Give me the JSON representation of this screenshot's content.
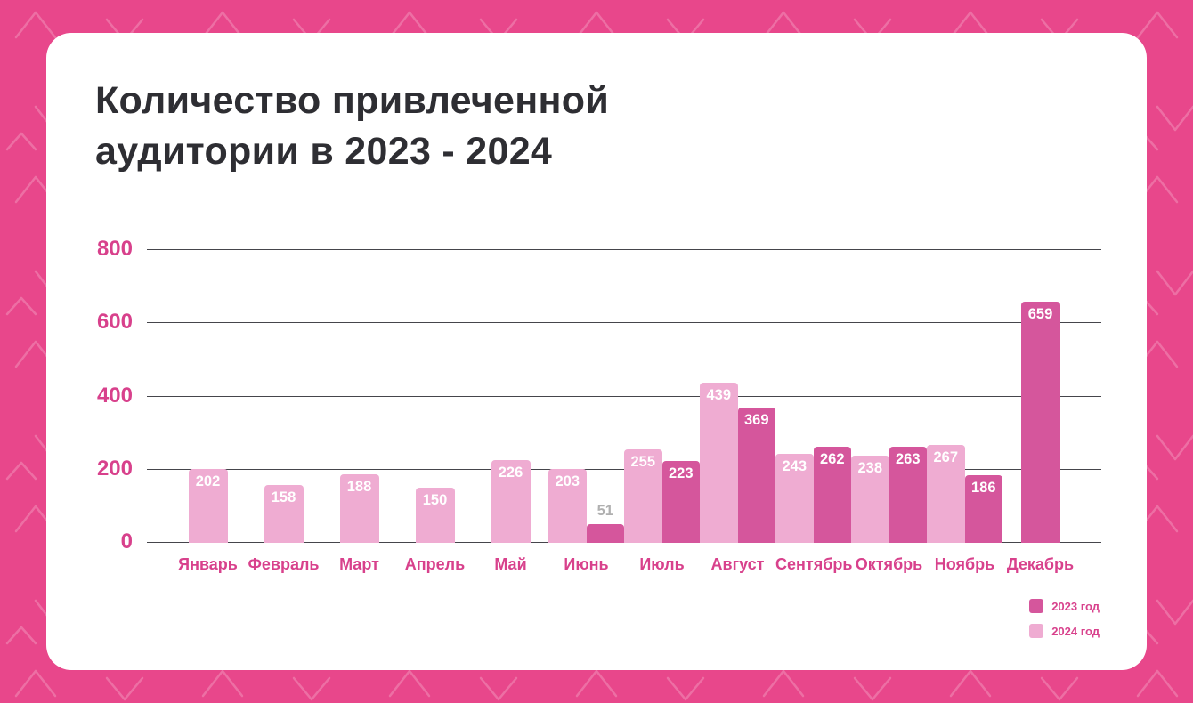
{
  "title": {
    "line1": "Количество привлеченной",
    "line2": "аудитории в 2023 - 2024"
  },
  "colors": {
    "background": "#E8478B",
    "card": "#FFFFFF",
    "axis_text": "#D8418C",
    "title_text": "#2E2E33",
    "gridline": "#45454B",
    "bar_label": "#FFFFFF",
    "small_bar_label": "#B0B0B0"
  },
  "chart_data": {
    "type": "bar",
    "title": "Количество привлеченной аудитории в 2023 - 2024",
    "xlabel": "",
    "ylabel": "",
    "ylim": [
      0,
      800
    ],
    "yticks": [
      0,
      200,
      400,
      600,
      800
    ],
    "grid": true,
    "legend_position": "bottom-right",
    "categories": [
      "Январь",
      "Февраль",
      "Март",
      "Апрель",
      "Май",
      "Июнь",
      "Июль",
      "Август",
      "Сентябрь",
      "Октябрь",
      "Ноябрь",
      "Декабрь"
    ],
    "series": [
      {
        "name": "2023 год",
        "color": "#D5569C",
        "values": [
          null,
          null,
          null,
          null,
          null,
          51,
          223,
          369,
          262,
          263,
          186,
          659
        ]
      },
      {
        "name": "2024 год",
        "color": "#EFACD2",
        "values": [
          202,
          158,
          188,
          150,
          226,
          203,
          255,
          439,
          243,
          238,
          267,
          null
        ]
      }
    ]
  }
}
